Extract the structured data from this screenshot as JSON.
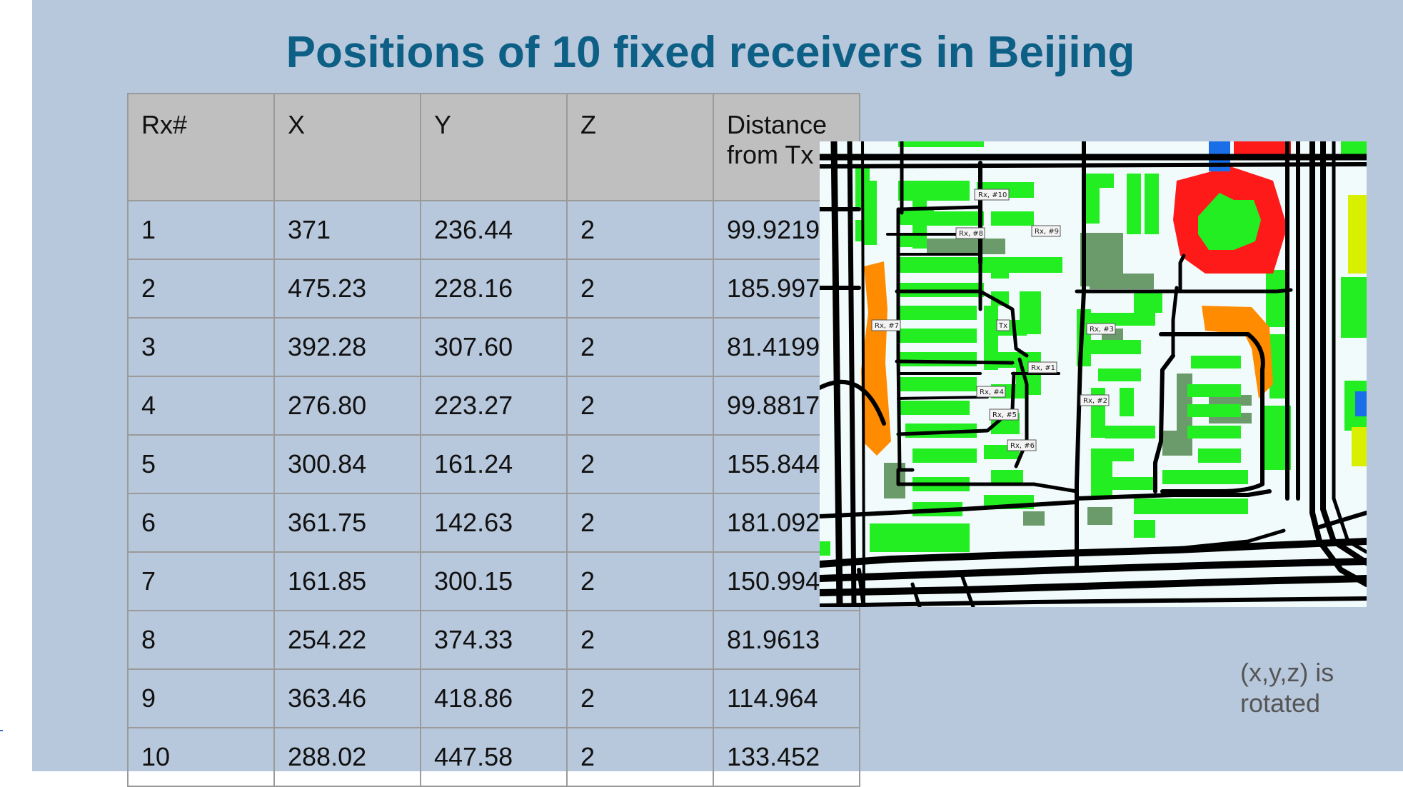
{
  "slide": {
    "title": "Positions of 10 fixed receivers in Beijing",
    "note_line1": "(x,y,z) is",
    "note_line2": "rotated"
  },
  "table": {
    "headers": [
      "Rx#",
      "X",
      "Y",
      "Z",
      "Distance from Tx"
    ],
    "header_dist_line1": "Distance",
    "header_dist_line2": "from Tx",
    "rows": [
      [
        "1",
        "371",
        "236.44",
        "2",
        "99.9219"
      ],
      [
        "2",
        "475.23",
        "228.16",
        "2",
        "185.997"
      ],
      [
        "3",
        "392.28",
        "307.60",
        "2",
        "81.4199"
      ],
      [
        "4",
        "276.80",
        "223.27",
        "2",
        "99.8817"
      ],
      [
        "5",
        "300.84",
        "161.24",
        "2",
        "155.844"
      ],
      [
        "6",
        "361.75",
        "142.63",
        "2",
        "181.092"
      ],
      [
        "7",
        "161.85",
        "300.15",
        "2",
        "150.994"
      ],
      [
        "8",
        "254.22",
        "374.33",
        "2",
        "81.9613"
      ],
      [
        "9",
        "363.46",
        "418.86",
        "2",
        "114.964"
      ],
      [
        "10",
        "288.02",
        "447.58",
        "2",
        "133.452"
      ]
    ]
  },
  "map": {
    "labels": {
      "rx10": "Rx, #10",
      "rx8": "Rx, #8",
      "rx9": "Rx, #9",
      "rx7": "Rx, #7",
      "tx": "Tx",
      "rx3": "Rx, #3",
      "rx1": "Rx, #1",
      "rx4": "Rx, #4",
      "rx2": "Rx, #2",
      "rx5": "Rx, #5",
      "rx6": "Rx, #6"
    },
    "colors": {
      "building_green": "#22ee22",
      "building_dark": "#6b9a6b",
      "building_red": "#ff1a1a",
      "building_orange": "#ff8c00",
      "building_yellow": "#d8f000",
      "building_blue": "#1a6ee8",
      "road": "#000000",
      "ground": "#f2fbfc"
    }
  }
}
